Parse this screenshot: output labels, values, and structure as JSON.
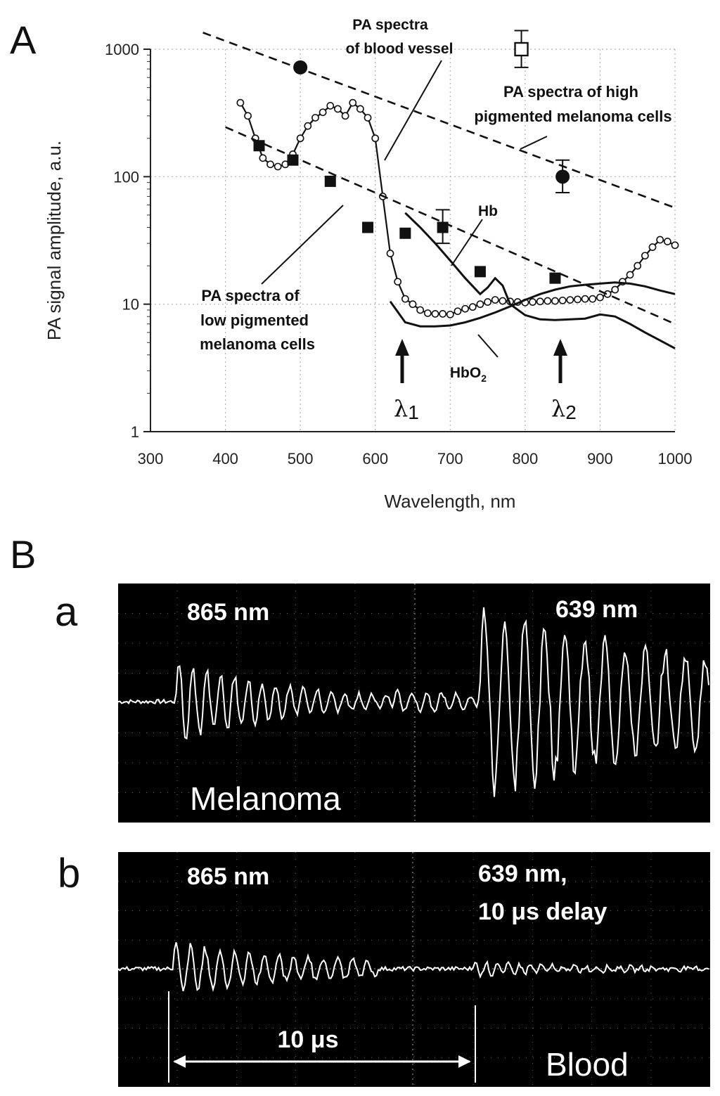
{
  "panel_labels": {
    "A": "A",
    "B": "B",
    "a": "a",
    "b": "b"
  },
  "chart_data": [
    {
      "type": "line",
      "panel": "A",
      "xlabel": "Wavelength, nm",
      "ylabel": "PA signal amplitude, a.u.",
      "xlim": [
        300,
        1000
      ],
      "ylim": [
        1,
        1000
      ],
      "yscale": "log",
      "grid": true,
      "xticks": [
        "300",
        "400",
        "500",
        "600",
        "700",
        "800",
        "900",
        "1000"
      ],
      "yticks": [
        "1",
        "10",
        "100",
        "1000"
      ],
      "series": [
        {
          "name": "PA spectra of blood vessel",
          "kind": "line-with-circles",
          "x": [
            420,
            430,
            440,
            450,
            460,
            470,
            480,
            490,
            500,
            510,
            520,
            530,
            540,
            550,
            560,
            570,
            580,
            590,
            600,
            610,
            620,
            630,
            640,
            650,
            660,
            670,
            680,
            690,
            700,
            710,
            720,
            730,
            740,
            750,
            760,
            770,
            780,
            790,
            800,
            810,
            820,
            830,
            840,
            850,
            860,
            870,
            880,
            890,
            900,
            910,
            920,
            930,
            940,
            950,
            960,
            970,
            980,
            990,
            1000
          ],
          "y": [
            380,
            300,
            200,
            140,
            125,
            120,
            125,
            150,
            200,
            250,
            290,
            320,
            360,
            340,
            300,
            380,
            340,
            290,
            200,
            70,
            25,
            15,
            11,
            10,
            9,
            8.5,
            8.4,
            8.4,
            8.3,
            8.8,
            9.2,
            9.5,
            10,
            10.4,
            10.8,
            10.6,
            10.5,
            10.4,
            10.3,
            10.4,
            10.5,
            10.6,
            10.6,
            10.7,
            10.8,
            10.9,
            11,
            11,
            11.3,
            12,
            13,
            15,
            17,
            20,
            24,
            28,
            32,
            31,
            29
          ]
        },
        {
          "name": "Hb",
          "kind": "line",
          "x": [
            640,
            660,
            680,
            700,
            720,
            740,
            750,
            760,
            770,
            780,
            800,
            820,
            840,
            860,
            880,
            900,
            920,
            940,
            960,
            980,
            1000
          ],
          "y": [
            52,
            40,
            30,
            22,
            16,
            12,
            13.5,
            16,
            14,
            10,
            8.2,
            7.6,
            7.5,
            7.6,
            7.7,
            8.3,
            8,
            7,
            6,
            5.2,
            4.5
          ]
        },
        {
          "name": "HbO2",
          "kind": "line",
          "x": [
            620,
            640,
            660,
            680,
            700,
            720,
            740,
            760,
            780,
            800,
            820,
            840,
            860,
            880,
            900,
            920,
            940,
            960,
            980,
            1000
          ],
          "y": [
            10.5,
            7.2,
            6.7,
            6.7,
            6.8,
            7.2,
            7.8,
            8.6,
            9.6,
            10.8,
            12,
            13,
            13.8,
            14.2,
            14.5,
            14.8,
            14.5,
            13.8,
            12.8,
            12
          ]
        },
        {
          "name": "PA spectra of high pigmented melanoma cells",
          "kind": "points-and-fit",
          "x": [
            500,
            850
          ],
          "y": [
            720,
            100
          ],
          "error": [
            null,
            [
              75,
              135
            ]
          ],
          "fit": {
            "x": [
              370,
              1000
            ],
            "y": [
              1350,
              57
            ]
          }
        },
        {
          "name": "PA spectra of low pigmented melanoma cells",
          "kind": "points-and-fit",
          "x": [
            445,
            490,
            540,
            590,
            640,
            690,
            740,
            840
          ],
          "y": [
            175,
            135,
            92,
            40,
            36,
            40,
            18,
            16
          ],
          "error": [
            null,
            null,
            null,
            null,
            null,
            [
              30,
              55
            ],
            null,
            null
          ],
          "fit": {
            "x": [
              400,
              1000
            ],
            "y": [
              245,
              7
            ]
          }
        },
        {
          "name": "open-square",
          "kind": "point",
          "x": [
            795
          ],
          "y": [
            1000
          ],
          "error": [
            [
              720,
              1400
            ]
          ]
        }
      ],
      "annotations": [
        {
          "text_lines": [
            "PA spectra",
            "of blood vessel"
          ]
        },
        {
          "text_lines": [
            "PA spectra of high",
            "pigmented melanoma cells"
          ]
        },
        {
          "text_lines": [
            "PA spectra of",
            "low pigmented",
            "melanoma cells"
          ]
        },
        {
          "text_lines": [
            "Hb"
          ]
        },
        {
          "text_lines": [
            "HbO",
            "2"
          ]
        }
      ],
      "markers": [
        {
          "label": "λ",
          "sub": "1",
          "x": 639
        },
        {
          "label": "λ",
          "sub": "2",
          "x": 850
        }
      ]
    },
    {
      "type": "oscillogram",
      "panel": "B-a",
      "labels": {
        "left": "865 nm",
        "right": "639 nm",
        "bottom": "Melanoma"
      },
      "background": "#000000",
      "trace_color": "#ffffff"
    },
    {
      "type": "oscillogram",
      "panel": "B-b",
      "labels": {
        "left": "865 nm",
        "right_line1": "639 nm,",
        "right_line2": "10 μs delay",
        "bottom": "Blood",
        "scale": "10 μs"
      },
      "background": "#000000",
      "trace_color": "#ffffff"
    }
  ]
}
